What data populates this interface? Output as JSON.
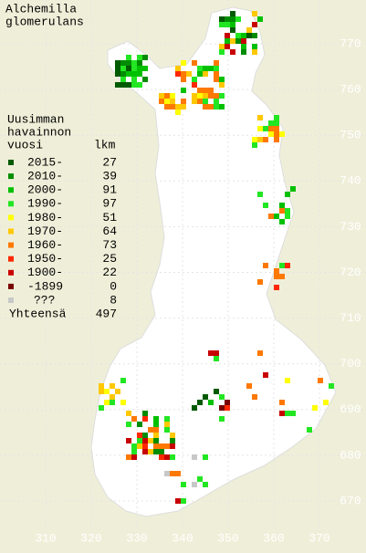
{
  "title": [
    "Alchemilla",
    "glomerulans"
  ],
  "legend": {
    "heading": [
      "Uusimman",
      "havainnon",
      "vuosi"
    ],
    "count_header": "lkm",
    "entries": [
      {
        "label": "2015-",
        "count": 27,
        "color": "#005a00"
      },
      {
        "label": "2010-",
        "count": 39,
        "color": "#008c00"
      },
      {
        "label": "2000-",
        "count": 91,
        "color": "#00c000"
      },
      {
        "label": "1990-",
        "count": 97,
        "color": "#22e622"
      },
      {
        "label": "1980-",
        "count": 51,
        "color": "#ffff00"
      },
      {
        "label": "1970-",
        "count": 64,
        "color": "#ffc800"
      },
      {
        "label": "1960-",
        "count": 73,
        "color": "#ff7800"
      },
      {
        "label": "1950-",
        "count": 25,
        "color": "#ff2800"
      },
      {
        "label": "1900-",
        "count": 22,
        "color": "#c80000"
      },
      {
        "label": "-1899",
        "count": 0,
        "color": "#780000"
      },
      {
        "label": "???",
        "count": 8,
        "color": "#c8c8c8"
      }
    ],
    "total_label": "Yhteensä",
    "total": 497
  },
  "x_labels": [
    "310",
    "320",
    "330",
    "340",
    "350",
    "360",
    "370"
  ],
  "y_labels": [
    "770",
    "760",
    "750",
    "740",
    "730",
    "720",
    "710",
    "700",
    "690",
    "680",
    "670"
  ]
}
